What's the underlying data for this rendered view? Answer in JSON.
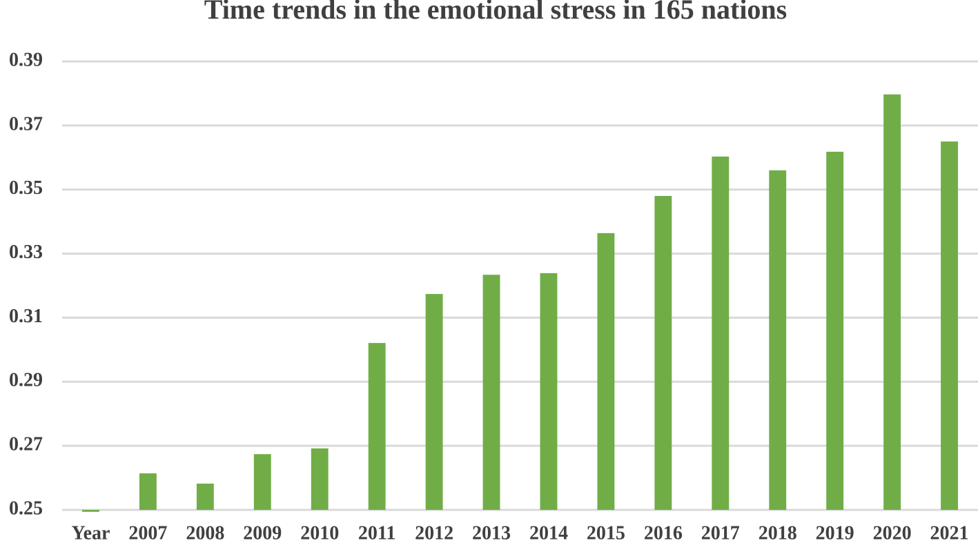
{
  "chart_data": {
    "type": "bar",
    "title": "Time trends in the emotional stress in 165 nations",
    "categories": [
      "Year",
      "2007",
      "2008",
      "2009",
      "2010",
      "2011",
      "2012",
      "2013",
      "2014",
      "2015",
      "2016",
      "2017",
      "2018",
      "2019",
      "2020",
      "2021"
    ],
    "values": [
      0.2494,
      0.2614,
      0.2582,
      0.2674,
      0.2692,
      0.3021,
      0.3174,
      0.3234,
      0.3239,
      0.3364,
      0.348,
      0.3603,
      0.356,
      0.3618,
      0.3797,
      0.365
    ],
    "color": "#70ad47",
    "ylim": [
      0.25,
      0.39
    ],
    "yticks": [
      0.25,
      0.27,
      0.29,
      0.31,
      0.33,
      0.35,
      0.37,
      0.39
    ],
    "grid": true
  }
}
